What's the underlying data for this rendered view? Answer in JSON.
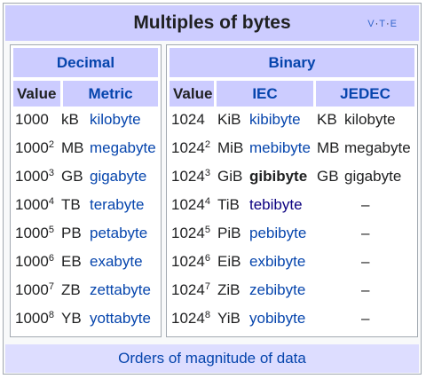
{
  "title": "Multiples of bytes",
  "vte": {
    "v": "V",
    "t": "T",
    "e": "E",
    "sep": "·"
  },
  "decimal": {
    "header": "Decimal",
    "col_value": "Value",
    "col_metric": "Metric",
    "rows": [
      {
        "base": "1000",
        "exp": "",
        "sym": "kB",
        "name": "kilobyte"
      },
      {
        "base": "1000",
        "exp": "2",
        "sym": "MB",
        "name": "megabyte"
      },
      {
        "base": "1000",
        "exp": "3",
        "sym": "GB",
        "name": "gigabyte"
      },
      {
        "base": "1000",
        "exp": "4",
        "sym": "TB",
        "name": "terabyte"
      },
      {
        "base": "1000",
        "exp": "5",
        "sym": "PB",
        "name": "petabyte"
      },
      {
        "base": "1000",
        "exp": "6",
        "sym": "EB",
        "name": "exabyte"
      },
      {
        "base": "1000",
        "exp": "7",
        "sym": "ZB",
        "name": "zettabyte"
      },
      {
        "base": "1000",
        "exp": "8",
        "sym": "YB",
        "name": "yottabyte"
      }
    ]
  },
  "binary": {
    "header": "Binary",
    "col_value": "Value",
    "col_iec": "IEC",
    "col_jedec": "JEDEC",
    "rows": [
      {
        "base": "1024",
        "exp": "",
        "sym": "KiB",
        "name": "kibibyte",
        "jsym": "KB",
        "jname": "kilobyte"
      },
      {
        "base": "1024",
        "exp": "2",
        "sym": "MiB",
        "name": "mebibyte",
        "jsym": "MB",
        "jname": "megabyte"
      },
      {
        "base": "1024",
        "exp": "3",
        "sym": "GiB",
        "name": "gibibyte",
        "jsym": "GB",
        "jname": "gigabyte"
      },
      {
        "base": "1024",
        "exp": "4",
        "sym": "TiB",
        "name": "tebibyte",
        "jsym": "",
        "jname": "–"
      },
      {
        "base": "1024",
        "exp": "5",
        "sym": "PiB",
        "name": "pebibyte",
        "jsym": "",
        "jname": "–"
      },
      {
        "base": "1024",
        "exp": "6",
        "sym": "EiB",
        "name": "exbibyte",
        "jsym": "",
        "jname": "–"
      },
      {
        "base": "1024",
        "exp": "7",
        "sym": "ZiB",
        "name": "zebibyte",
        "jsym": "",
        "jname": "–"
      },
      {
        "base": "1024",
        "exp": "8",
        "sym": "YiB",
        "name": "yobibyte",
        "jsym": "",
        "jname": "–"
      }
    ]
  },
  "footer": "Orders of magnitude of data"
}
